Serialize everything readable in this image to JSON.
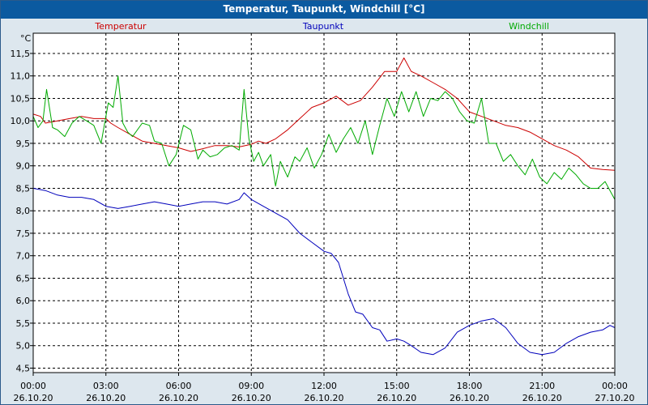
{
  "chart_data": {
    "type": "line",
    "title": "Temperatur, Taupunkt, Windchill [°C]",
    "yunit": "°C",
    "ylim": [
      4.4,
      11.95
    ],
    "y_ticks": [
      "4,5",
      "5,0",
      "5,5",
      "6,0",
      "6,5",
      "7,0",
      "7,5",
      "8,0",
      "8,5",
      "9,0",
      "9,5",
      "10,0",
      "10,5",
      "11,0",
      "11,5"
    ],
    "x_ticks": [
      {
        "time": "00:00",
        "date": "26.10.20"
      },
      {
        "time": "03:00",
        "date": "26.10.20"
      },
      {
        "time": "06:00",
        "date": "26.10.20"
      },
      {
        "time": "09:00",
        "date": "26.10.20"
      },
      {
        "time": "12:00",
        "date": "26.10.20"
      },
      {
        "time": "15:00",
        "date": "26.10.20"
      },
      {
        "time": "18:00",
        "date": "26.10.20"
      },
      {
        "time": "21:00",
        "date": "26.10.20"
      },
      {
        "time": "00:00",
        "date": "27.10.20"
      }
    ],
    "grid": true,
    "x_unit": "hours",
    "series": [
      {
        "name": "Temperatur",
        "color": "#cc0000",
        "x": [
          0,
          0.3,
          0.5,
          1,
          1.5,
          2,
          2.5,
          3,
          3.2,
          3.5,
          4,
          4.5,
          5,
          5.5,
          6,
          6.5,
          7,
          7.5,
          8,
          8.5,
          9,
          9.3,
          9.6,
          10,
          10.5,
          11,
          11.5,
          12,
          12.5,
          13,
          13.5,
          14,
          14.5,
          15,
          15.3,
          15.6,
          16,
          16.5,
          17,
          17.5,
          18,
          18.5,
          19,
          19.5,
          20,
          20.5,
          21,
          21.5,
          22,
          22.5,
          23,
          23.5,
          24
        ],
        "y": [
          10.15,
          10.1,
          9.95,
          10.0,
          10.05,
          10.1,
          10.05,
          10.05,
          9.95,
          9.85,
          9.7,
          9.55,
          9.5,
          9.45,
          9.4,
          9.32,
          9.38,
          9.45,
          9.45,
          9.42,
          9.48,
          9.55,
          9.5,
          9.6,
          9.8,
          10.05,
          10.3,
          10.4,
          10.55,
          10.35,
          10.45,
          10.75,
          11.1,
          11.1,
          11.4,
          11.1,
          11.0,
          10.85,
          10.7,
          10.5,
          10.2,
          10.1,
          10.0,
          9.9,
          9.85,
          9.75,
          9.6,
          9.45,
          9.35,
          9.2,
          8.95,
          8.92,
          8.9
        ]
      },
      {
        "name": "Taupunkt",
        "color": "#0000bb",
        "x": [
          0,
          0.5,
          1,
          1.5,
          2,
          2.5,
          3,
          3.5,
          4,
          4.5,
          5,
          5.5,
          6,
          6.5,
          7,
          7.5,
          8,
          8.5,
          8.7,
          9,
          9.5,
          10,
          10.5,
          11,
          11.5,
          12,
          12.3,
          12.6,
          13,
          13.3,
          13.6,
          14,
          14.3,
          14.6,
          15,
          15.3,
          15.6,
          16,
          16.5,
          17,
          17.5,
          18,
          18.5,
          19,
          19.5,
          20,
          20.5,
          21,
          21.5,
          22,
          22.5,
          23,
          23.5,
          23.8,
          24
        ],
        "y": [
          8.5,
          8.45,
          8.35,
          8.3,
          8.3,
          8.25,
          8.1,
          8.05,
          8.1,
          8.15,
          8.2,
          8.15,
          8.1,
          8.15,
          8.2,
          8.2,
          8.15,
          8.25,
          8.4,
          8.25,
          8.1,
          7.95,
          7.8,
          7.5,
          7.3,
          7.1,
          7.05,
          6.85,
          6.15,
          5.75,
          5.7,
          5.4,
          5.35,
          5.1,
          5.15,
          5.1,
          5.0,
          4.85,
          4.8,
          4.95,
          5.3,
          5.45,
          5.55,
          5.6,
          5.4,
          5.05,
          4.85,
          4.8,
          4.85,
          5.05,
          5.2,
          5.3,
          5.35,
          5.45,
          5.4
        ]
      },
      {
        "name": "Windchill",
        "color": "#00aa00",
        "x": [
          0,
          0.2,
          0.4,
          0.55,
          0.8,
          1,
          1.3,
          1.6,
          1.9,
          2.2,
          2.5,
          2.8,
          3.1,
          3.3,
          3.5,
          3.7,
          3.9,
          4.1,
          4.5,
          4.8,
          5,
          5.3,
          5.6,
          5.9,
          6.2,
          6.5,
          6.8,
          7.0,
          7.3,
          7.6,
          7.9,
          8.2,
          8.5,
          8.7,
          8.9,
          9.1,
          9.3,
          9.5,
          9.8,
          10,
          10.2,
          10.5,
          10.8,
          11,
          11.3,
          11.6,
          11.9,
          12.2,
          12.5,
          12.8,
          13.1,
          13.4,
          13.7,
          14,
          14.3,
          14.6,
          14.9,
          15.2,
          15.5,
          15.8,
          16.1,
          16.4,
          16.7,
          17,
          17.3,
          17.6,
          17.9,
          18.2,
          18.5,
          18.8,
          19.1,
          19.4,
          19.7,
          20,
          20.3,
          20.6,
          20.9,
          21.2,
          21.5,
          21.8,
          22.1,
          22.4,
          22.7,
          23,
          23.3,
          23.6,
          24
        ],
        "y": [
          10.1,
          9.85,
          10.0,
          10.7,
          9.85,
          9.8,
          9.65,
          9.95,
          10.1,
          10.0,
          9.9,
          9.5,
          10.4,
          10.3,
          11.0,
          9.95,
          9.75,
          9.65,
          9.95,
          9.9,
          9.55,
          9.5,
          9.0,
          9.25,
          9.9,
          9.8,
          9.15,
          9.35,
          9.2,
          9.25,
          9.4,
          9.45,
          9.35,
          10.7,
          9.6,
          9.1,
          9.3,
          9.0,
          9.25,
          8.55,
          9.1,
          8.75,
          9.2,
          9.1,
          9.4,
          8.95,
          9.25,
          9.7,
          9.3,
          9.6,
          9.85,
          9.5,
          10.0,
          9.25,
          9.9,
          10.5,
          10.1,
          10.65,
          10.2,
          10.65,
          10.1,
          10.5,
          10.45,
          10.65,
          10.5,
          10.2,
          10.0,
          9.95,
          10.5,
          9.5,
          9.5,
          9.1,
          9.25,
          9.0,
          8.8,
          9.15,
          8.75,
          8.6,
          8.85,
          8.7,
          8.95,
          8.8,
          8.6,
          8.5,
          8.5,
          8.65,
          8.25
        ]
      }
    ]
  }
}
